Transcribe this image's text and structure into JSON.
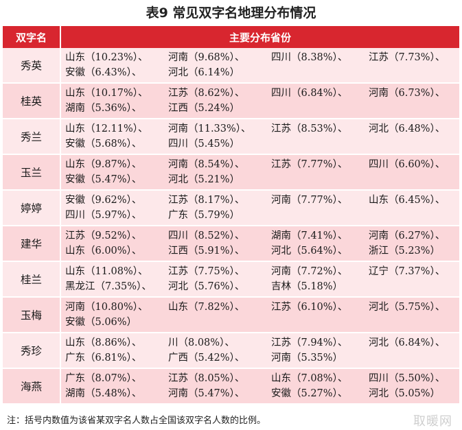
{
  "title": "表9  常见双字名地理分布情况",
  "table": {
    "headers": [
      "双字名",
      "主要分布省份"
    ],
    "rows": [
      {
        "name": "秀英",
        "lines": [
          [
            "山东（10.23%）、",
            "河南（9.68%）、",
            "四川（8.38%）、",
            "江苏（7.73%）、"
          ],
          [
            "安徽（6.43%）、",
            "河北（6.14%）"
          ]
        ]
      },
      {
        "name": "桂英",
        "lines": [
          [
            "山东（10.17%）、",
            "江苏（8.62%）、",
            "四川（6.84%）、",
            "河南（6.73%）、"
          ],
          [
            "湖南（5.36%）、",
            "江西（5.24%）"
          ]
        ]
      },
      {
        "name": "秀兰",
        "lines": [
          [
            "山东（12.11%）、",
            "河南（11.33%）、",
            "江苏（8.53%）、",
            "河北（6.48%）、"
          ],
          [
            "安徽（5.68%）、",
            "四川（5.45%）"
          ]
        ]
      },
      {
        "name": "玉兰",
        "lines": [
          [
            "山东（9.87%）、",
            "河南（8.54%）、",
            "江苏（7.77%）、",
            "四川（6.60%）、"
          ],
          [
            "安徽（5.47%）、",
            "河北（5.21%）"
          ]
        ]
      },
      {
        "name": "婷婷",
        "lines": [
          [
            "安徽（9.62%）、",
            "江苏（8.17%）、",
            "河南（7.77%）、",
            "山东（6.45%）、"
          ],
          [
            "四川（5.97%）、",
            "广东（5.79%）"
          ]
        ]
      },
      {
        "name": "建华",
        "lines": [
          [
            "江苏（9.52%）、",
            "四川（8.52%）、",
            "湖南（7.41%）、",
            "河南（6.27%）、"
          ],
          [
            "山东（6.00%）、",
            "江西（5.91%）、",
            "河北（5.64%）、",
            "浙江（5.23%）"
          ]
        ]
      },
      {
        "name": "桂兰",
        "lines": [
          [
            "山东（11.08%）、",
            "江苏（7.75%）、",
            "河南（7.72%）、",
            "辽宁（7.37%）、"
          ],
          [
            "黑龙江（7.35%）、",
            "河北（5.76%）、",
            "吉林（5.18%）"
          ]
        ]
      },
      {
        "name": "玉梅",
        "lines": [
          [
            "河南（10.80%）、",
            "山东（7.82%）、",
            "江苏（6.10%）、",
            "河北（5.75%）、"
          ],
          [
            "安徽（5.06%）"
          ]
        ]
      },
      {
        "name": "秀珍",
        "lines": [
          [
            "山东（8.86%）、",
            "川（8.08%）、",
            "江苏（7.94%）、",
            "河北（6.84%）、"
          ],
          [
            "广东（6.81%）、",
            "广西（5.42%）、",
            "河南（5.35%）"
          ]
        ]
      },
      {
        "name": "海燕",
        "lines": [
          [
            "广东（8.07%）、",
            "江苏（8.05%）、",
            "山东（7.08%）、",
            "四川（5.50%）、"
          ],
          [
            "湖南（5.48%）、",
            "河南（5.47%）、",
            "安徽（5.27%）、",
            "河北（5.05%）"
          ]
        ]
      }
    ]
  },
  "note": "注：括号内数值为该省某双字名人数占全国该双字名人数的比例。",
  "watermark": "取暖网"
}
